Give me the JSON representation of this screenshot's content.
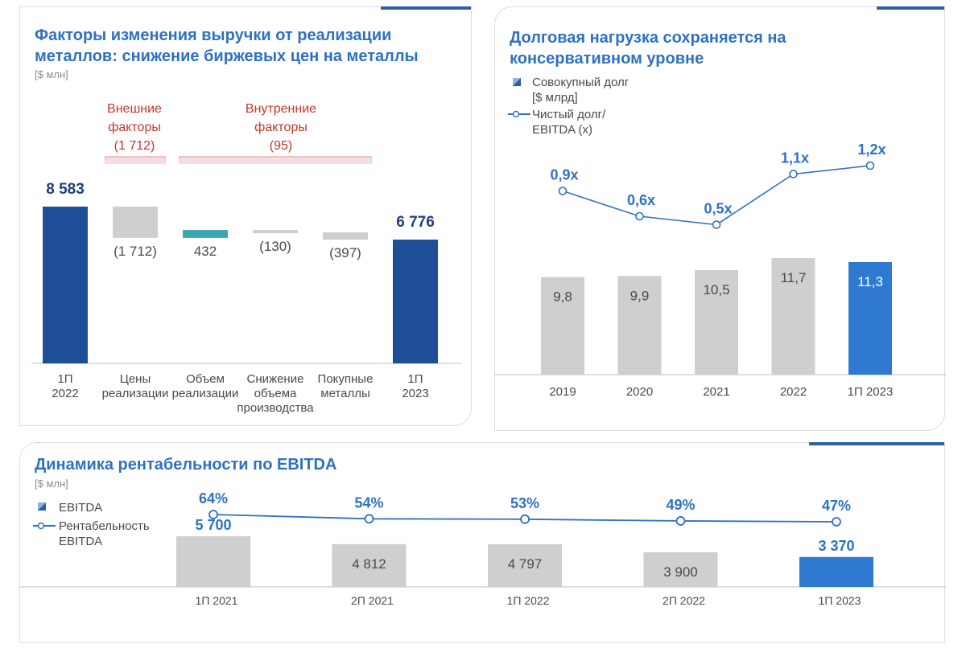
{
  "colors": {
    "title": "#2e71c2",
    "dark_blue": "#1f4e98",
    "mid_blue": "#2e71c2",
    "bright_blue": "#2f7ad0",
    "teal": "#3aa6ad",
    "gray_bar": "#cfcfcf",
    "line": "#2e71c2",
    "annotation_red": "#c0392b",
    "accent_line": "#2e5ea8"
  },
  "revenue": {
    "title_line1": "Факторы изменения выручки от реализации",
    "title_line2": "металлов: снижение биржевых цен на металлы",
    "unit": "[$ млн]",
    "external_label_1": "Внешние",
    "external_label_2": "факторы",
    "external_label_3": "(1 712)",
    "internal_label_1": "Внутренние",
    "internal_label_2": "факторы",
    "internal_label_3": "(95)"
  },
  "debt": {
    "title_line1": "Долговая нагрузка сохраняется на",
    "title_line2": "консервативном уровне",
    "legend_bar_1": "Совокупный долг",
    "legend_bar_2": "[$ млрд]",
    "legend_line_1": "Чистый долг/",
    "legend_line_2": "EBITDA (x)"
  },
  "ebitda": {
    "title": "Динамика рентабельности по EBITDA",
    "unit": "[$ млн]",
    "legend_bar": "EBITDA",
    "legend_line_1": "Рентабельность",
    "legend_line_2": "EBITDA"
  },
  "chart_data": [
    {
      "type": "bar",
      "chart": "revenue-waterfall",
      "categories": [
        [
          "1П",
          "2022"
        ],
        [
          "Цены",
          "реализации"
        ],
        [
          "Объем",
          "реализации"
        ],
        [
          "Снижение",
          "объема",
          "производства"
        ],
        [
          "Покупные",
          "металлы"
        ],
        [
          "1П",
          "2023"
        ]
      ],
      "values": [
        8583,
        -1712,
        432,
        -130,
        -397,
        6776
      ],
      "labels": [
        "8 583",
        "(1 712)",
        "432",
        "(130)",
        "(397)",
        "6 776"
      ],
      "bar_kind": [
        "total",
        "delta",
        "delta",
        "delta",
        "delta",
        "total"
      ]
    },
    {
      "type": "bar",
      "chart": "debt",
      "categories": [
        "2019",
        "2020",
        "2021",
        "2022",
        "1П 2023"
      ],
      "series": [
        {
          "name": "Совокупный долг [$ млрд]",
          "values": [
            9.8,
            9.9,
            10.5,
            11.7,
            11.3
          ],
          "labels": [
            "9,8",
            "9,9",
            "10,5",
            "11,7",
            "11,3"
          ]
        },
        {
          "name": "Чистый долг/ EBITDA (x)",
          "values": [
            0.9,
            0.6,
            0.5,
            1.1,
            1.2
          ],
          "labels": [
            "0,9x",
            "0,6x",
            "0,5x",
            "1,1x",
            "1,2x"
          ]
        }
      ]
    },
    {
      "type": "bar",
      "chart": "ebitda",
      "categories": [
        "1П 2021",
        "2П 2021",
        "1П 2022",
        "2П 2022",
        "1П 2023"
      ],
      "series": [
        {
          "name": "EBITDA",
          "values": [
            5700,
            4812,
            4797,
            3900,
            3370
          ],
          "labels": [
            "5 700",
            "4 812",
            "4 797",
            "3 900",
            "3 370"
          ]
        },
        {
          "name": "Рентабельность EBITDA",
          "values": [
            64,
            54,
            53,
            49,
            47
          ],
          "labels": [
            "64%",
            "54%",
            "53%",
            "49%",
            "47%"
          ]
        }
      ]
    }
  ]
}
